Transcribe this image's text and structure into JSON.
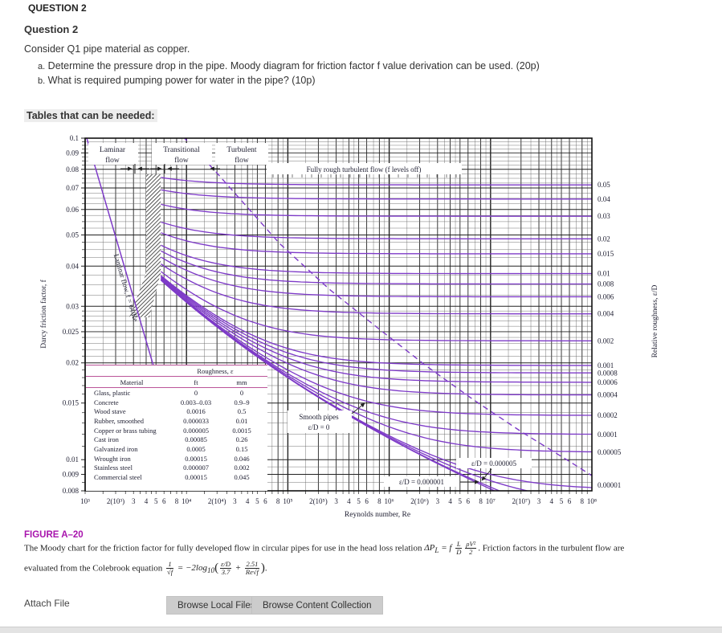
{
  "page": {
    "header": "QUESTION 2",
    "question_title": "Question 2",
    "intro": "Consider Q1 pipe material as copper.",
    "items": [
      {
        "marker": "a.",
        "text": "Determine the pressure drop in the pipe. Moody diagram for friction factor f value derivation can be used. (20p)"
      },
      {
        "marker": "b.",
        "text": "What is required pumping power for water in the pipe? (10p)"
      }
    ],
    "tables_label": "Tables that can be needed:",
    "figure_label": "FIGURE A–20",
    "caption": {
      "line1_pre": "The Moody chart for the friction factor for fully developed flow in circular pipes for use in the head loss relation ",
      "headloss": {
        "lhs": "ΔP",
        "sub": "L",
        "eq": " = f ",
        "f1n": "L",
        "f1d": "D",
        "f2n": "ρV²",
        "f2d": "2"
      },
      "line1_post": ". Friction factors in the turbulent flow are",
      "line2_pre": "evaluated from the Colebrook equation ",
      "colebrook": {
        "f0n": "1",
        "f0d": "√f",
        "eq": " = −2log",
        "sub": "10",
        "f1n": "ε/D",
        "f1d": "3.7",
        "plus": " + ",
        "f2n": "2.51",
        "f2d": "Re√f"
      },
      "line2_post": "."
    },
    "attach_label": "Attach File",
    "buttons": [
      "Browse Local Files",
      "Browse Content Collection"
    ]
  },
  "chart_data": {
    "type": "line",
    "title": "Moody chart",
    "xlabel": "Reynolds number, Re",
    "ylabel": "Darcy friction factor, f",
    "ylabel_right": "Relative roughness, ε/D",
    "xlim": [
      1000,
      100000000
    ],
    "ylim": [
      0.008,
      0.1
    ],
    "grid": true,
    "curve_color": "#7e3bc8",
    "grid_color": "#222222",
    "table_line_color": "#bb5599",
    "x_ticks": [
      {
        "re": 1000,
        "label": "10³"
      },
      {
        "re": 2000,
        "label": "2(10³)"
      },
      {
        "re": 3000,
        "label": "3"
      },
      {
        "re": 4000,
        "label": "4"
      },
      {
        "re": 5000,
        "label": "5"
      },
      {
        "re": 6000,
        "label": "6"
      },
      {
        "re": 8000,
        "label": "8"
      },
      {
        "re": 10000,
        "label": "10⁴"
      },
      {
        "re": 20000,
        "label": "2(10⁴)"
      },
      {
        "re": 30000,
        "label": "3"
      },
      {
        "re": 40000,
        "label": "4"
      },
      {
        "re": 50000,
        "label": "5"
      },
      {
        "re": 60000,
        "label": "6"
      },
      {
        "re": 80000,
        "label": "8"
      },
      {
        "re": 100000,
        "label": "10⁵"
      },
      {
        "re": 200000,
        "label": "2(10⁵)"
      },
      {
        "re": 300000,
        "label": "3"
      },
      {
        "re": 400000,
        "label": "4"
      },
      {
        "re": 500000,
        "label": "5"
      },
      {
        "re": 600000,
        "label": "6"
      },
      {
        "re": 800000,
        "label": "8"
      },
      {
        "re": 1000000,
        "label": "10⁶"
      },
      {
        "re": 2000000,
        "label": "2(10⁶)"
      },
      {
        "re": 3000000,
        "label": "3"
      },
      {
        "re": 4000000,
        "label": "4"
      },
      {
        "re": 5000000,
        "label": "5"
      },
      {
        "re": 6000000,
        "label": "6"
      },
      {
        "re": 8000000,
        "label": "8"
      },
      {
        "re": 10000000,
        "label": "10⁷"
      },
      {
        "re": 20000000,
        "label": "2(10⁷)"
      },
      {
        "re": 30000000,
        "label": "3"
      },
      {
        "re": 40000000,
        "label": "4"
      },
      {
        "re": 50000000,
        "label": "5"
      },
      {
        "re": 60000000,
        "label": "6"
      },
      {
        "re": 80000000,
        "label": "8"
      },
      {
        "re": 100000000,
        "label": "10⁸"
      }
    ],
    "y_ticks": [
      "0.1",
      "0.09",
      "0.08",
      "0.07",
      "0.06",
      "0.05",
      "0.04",
      "0.03",
      "0.025",
      "0.02",
      "0.015",
      "0.01",
      "0.009",
      "0.008"
    ],
    "roughness_curves": [
      {
        "eD": 0.05,
        "label": "0.05"
      },
      {
        "eD": 0.04,
        "label": "0.04"
      },
      {
        "eD": 0.03,
        "label": "0.03"
      },
      {
        "eD": 0.02,
        "label": "0.02"
      },
      {
        "eD": 0.015,
        "label": "0.015"
      },
      {
        "eD": 0.01,
        "label": "0.01"
      },
      {
        "eD": 0.008,
        "label": "0.008"
      },
      {
        "eD": 0.006,
        "label": "0.006"
      },
      {
        "eD": 0.004,
        "label": "0.004"
      },
      {
        "eD": 0.002,
        "label": "0.002"
      },
      {
        "eD": 0.001,
        "label": "0.001"
      },
      {
        "eD": 0.0008,
        "label": "0.0008"
      },
      {
        "eD": 0.0006,
        "label": "0.0006"
      },
      {
        "eD": 0.0004,
        "label": "0.0004"
      },
      {
        "eD": 0.0002,
        "label": "0.0002"
      },
      {
        "eD": 0.0001,
        "label": "0.0001"
      },
      {
        "eD": 5e-05,
        "label": "0.00005"
      },
      {
        "eD": 1e-05,
        "label": "0.00001"
      }
    ],
    "smooth_extra": [
      5e-06,
      1e-06,
      0
    ],
    "laminar_label": "Laminar flow, f = 64/Re",
    "flow_regions": [
      {
        "line1": "Laminar",
        "line2": "flow"
      },
      {
        "line1": "Transitional",
        "line2": "flow"
      },
      {
        "line1": "Turbulent",
        "line2": "flow"
      }
    ],
    "fully_rough_label": "Fully rough turbulent flow (f levels off)",
    "smooth_label_1": "Smooth pipes",
    "smooth_label_2": "ε/D = 0",
    "annotation_5em6": "ε/D = 0.000005",
    "annotation_1em6": "ε/D = 0.000001",
    "roughness_table": {
      "title": "Roughness, ε",
      "col_material": "Material",
      "col_ft": "ft",
      "col_mm": "mm",
      "rows": [
        [
          "Glass, plastic",
          "0",
          "0"
        ],
        [
          "Concrete",
          "0.003–0.03",
          "0.9–9"
        ],
        [
          "Wood stave",
          "0.0016",
          "0.5"
        ],
        [
          "Rubber, smoothed",
          "0.000033",
          "0.01"
        ],
        [
          "Copper or brass tubing",
          "0.000005",
          "0.0015"
        ],
        [
          "Cast iron",
          "0.00085",
          "0.26"
        ],
        [
          "Galvanized iron",
          "0.0005",
          "0.15"
        ],
        [
          "Wrought iron",
          "0.00015",
          "0.046"
        ],
        [
          "Stainless steel",
          "0.000007",
          "0.002"
        ],
        [
          "Commercial steel",
          "0.00015",
          "0.045"
        ]
      ]
    }
  }
}
